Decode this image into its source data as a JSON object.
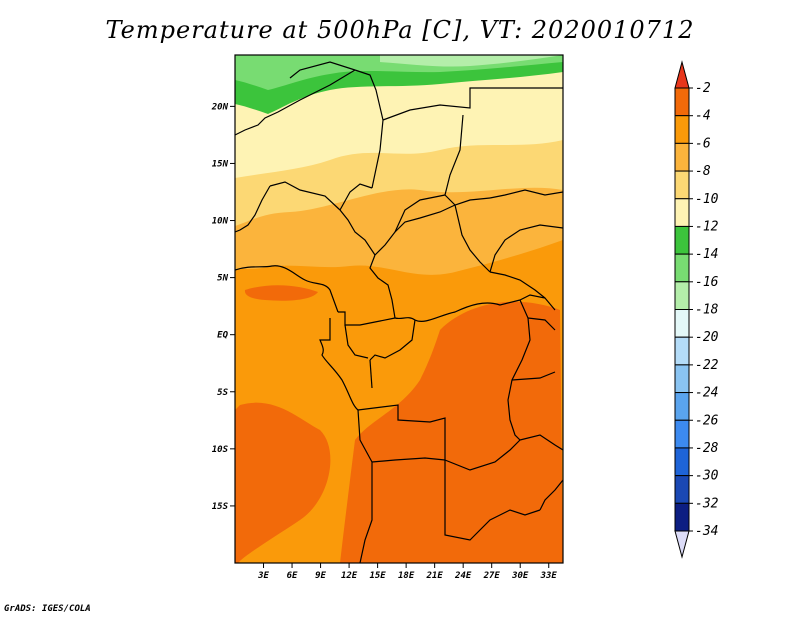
{
  "title": "Temperature at 500hPa [C], VT: 2020010712",
  "credit": "GrADS: IGES/COLA",
  "map": {
    "lat_range": [
      -20,
      24.5
    ],
    "lon_range": [
      0,
      34.5
    ],
    "lat_ticks": [
      {
        "value": 20,
        "label": "20N"
      },
      {
        "value": 15,
        "label": "15N"
      },
      {
        "value": 10,
        "label": "10N"
      },
      {
        "value": 5,
        "label": "5N"
      },
      {
        "value": 0,
        "label": "EQ"
      },
      {
        "value": -5,
        "label": "5S"
      },
      {
        "value": -10,
        "label": "10S"
      },
      {
        "value": -15,
        "label": "15S"
      }
    ],
    "lon_ticks": [
      {
        "value": 3,
        "label": "3E"
      },
      {
        "value": 6,
        "label": "6E"
      },
      {
        "value": 9,
        "label": "9E"
      },
      {
        "value": 12,
        "label": "12E"
      },
      {
        "value": 15,
        "label": "15E"
      },
      {
        "value": 18,
        "label": "18E"
      },
      {
        "value": 21,
        "label": "21E"
      },
      {
        "value": 24,
        "label": "24E"
      },
      {
        "value": 27,
        "label": "27E"
      },
      {
        "value": 30,
        "label": "30E"
      },
      {
        "value": 33,
        "label": "33E"
      }
    ]
  },
  "colorbar": {
    "labels": [
      "-2",
      "-4",
      "-6",
      "-8",
      "-10",
      "-12",
      "-14",
      "-16",
      "-18",
      "-20",
      "-22",
      "-24",
      "-26",
      "-28",
      "-30",
      "-32",
      "-34"
    ],
    "colors": [
      "#e8361c",
      "#f26a0a",
      "#fa9a0a",
      "#fbb43c",
      "#fcd874",
      "#fef3b4",
      "#3cc43c",
      "#78dc72",
      "#b4eeaa",
      "#e4f8f8",
      "#b4dcf8",
      "#8ac4f2",
      "#5aa4ee",
      "#3c8af0",
      "#1e64d8",
      "#1a48b4",
      "#0c1e82",
      "#dcdcf8"
    ]
  },
  "field_colors": {
    "t_m4_m2": "#f26a0a",
    "t_m6_m4": "#fa9a0a",
    "t_m8_m6": "#fbb43c",
    "t_m10_m8": "#fcd874",
    "t_m12_m10": "#fef3b4",
    "t_m14_m12": "#3cc43c",
    "t_m16_m14": "#78dc72",
    "t_m18_m16": "#b4eeaa"
  }
}
